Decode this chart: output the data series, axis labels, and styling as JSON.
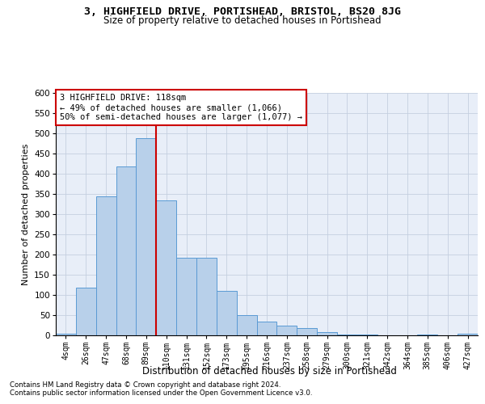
{
  "title": "3, HIGHFIELD DRIVE, PORTISHEAD, BRISTOL, BS20 8JG",
  "subtitle": "Size of property relative to detached houses in Portishead",
  "xlabel": "Distribution of detached houses by size in Portishead",
  "ylabel": "Number of detached properties",
  "footnote1": "Contains HM Land Registry data © Crown copyright and database right 2024.",
  "footnote2": "Contains public sector information licensed under the Open Government Licence v3.0.",
  "bin_labels": [
    "4sqm",
    "26sqm",
    "47sqm",
    "68sqm",
    "89sqm",
    "110sqm",
    "131sqm",
    "152sqm",
    "173sqm",
    "195sqm",
    "216sqm",
    "237sqm",
    "258sqm",
    "279sqm",
    "300sqm",
    "321sqm",
    "342sqm",
    "364sqm",
    "385sqm",
    "406sqm",
    "427sqm"
  ],
  "bar_values": [
    5,
    118,
    345,
    418,
    488,
    335,
    193,
    193,
    110,
    50,
    35,
    25,
    18,
    8,
    2,
    2,
    1,
    1,
    2,
    1,
    4
  ],
  "bar_color": "#b8d0ea",
  "bar_edge_color": "#5a9ad4",
  "background_color": "#e8eef8",
  "grid_color": "#c5cfe0",
  "vline_x": 4.5,
  "vline_color": "#cc0000",
  "annotation_text": "3 HIGHFIELD DRIVE: 118sqm\n← 49% of detached houses are smaller (1,066)\n50% of semi-detached houses are larger (1,077) →",
  "annotation_box_color": "#ffffff",
  "annotation_box_edge": "#cc0000",
  "ylim": [
    0,
    600
  ],
  "yticks": [
    0,
    50,
    100,
    150,
    200,
    250,
    300,
    350,
    400,
    450,
    500,
    550,
    600
  ],
  "title_fontsize": 9.5,
  "subtitle_fontsize": 8.5
}
